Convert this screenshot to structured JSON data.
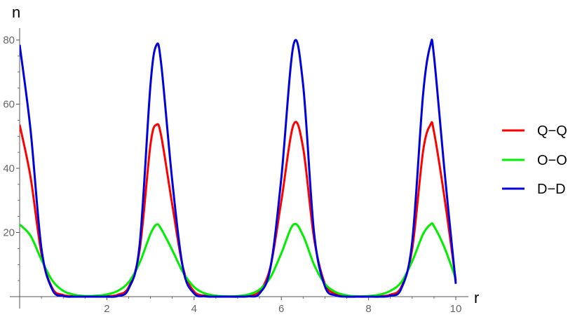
{
  "chart_data": {
    "type": "line",
    "xlabel": "r",
    "ylabel": "n",
    "xlim": [
      0,
      10
    ],
    "ylim": [
      0,
      80
    ],
    "xticks": [
      2,
      4,
      6,
      8,
      10
    ],
    "yticks": [
      20,
      40,
      60,
      80
    ],
    "grid": false,
    "legend_position": "right",
    "colors": {
      "axis": "#555555",
      "tick_label": "#666666",
      "axis_label": "#000000",
      "legend_text": "#000000"
    },
    "series": [
      {
        "name": "Q−Q",
        "color": "#ff0000",
        "x": [
          0,
          0.25,
          0.5,
          0.75,
          1.0,
          1.25,
          1.5,
          1.75,
          2.0,
          2.25,
          2.5,
          2.75,
          3.0,
          3.14,
          3.25,
          3.5,
          3.75,
          4.0,
          4.25,
          4.5,
          4.75,
          5.0,
          5.25,
          5.5,
          5.75,
          6.0,
          6.28,
          6.5,
          6.75,
          7.0,
          7.25,
          7.5,
          7.75,
          8.0,
          8.25,
          8.5,
          8.75,
          9.0,
          9.25,
          9.42,
          9.5,
          9.75,
          10.0
        ],
        "y": [
          53.6,
          37.3,
          13.4,
          2.6,
          0.5,
          0.1,
          0.0,
          0.0,
          0.1,
          0.6,
          3.0,
          14.4,
          47.4,
          53.6,
          49.8,
          28.6,
          8.8,
          1.6,
          0.3,
          0.1,
          0.0,
          0.0,
          0.3,
          1.7,
          9.3,
          29.8,
          53.6,
          46.4,
          18.2,
          4.0,
          0.8,
          0.2,
          0.0,
          0.0,
          0.1,
          0.6,
          3.0,
          14.8,
          45.3,
          53.6,
          51.4,
          30.0,
          5.0
        ]
      },
      {
        "name": "O−O",
        "color": "#00ee00",
        "x": [
          0,
          0.25,
          0.5,
          0.75,
          1.0,
          1.25,
          1.5,
          1.75,
          2.0,
          2.25,
          2.5,
          2.75,
          3.0,
          3.14,
          3.25,
          3.5,
          3.75,
          4.0,
          4.25,
          4.5,
          4.75,
          5.0,
          5.25,
          5.5,
          5.75,
          6.0,
          6.28,
          6.5,
          6.75,
          7.0,
          7.25,
          7.5,
          7.75,
          8.0,
          8.25,
          8.5,
          8.75,
          9.0,
          9.25,
          9.42,
          9.5,
          9.75,
          10.0
        ],
        "y": [
          22.5,
          19.0,
          11.5,
          5.0,
          1.8,
          0.6,
          0.2,
          0.3,
          0.7,
          1.8,
          4.5,
          10.5,
          19.5,
          22.5,
          21.0,
          14.5,
          7.5,
          3.0,
          1.0,
          0.3,
          0.1,
          0.2,
          0.7,
          2.2,
          6.0,
          13.5,
          22.5,
          19.0,
          10.0,
          4.0,
          1.4,
          0.4,
          0.1,
          0.2,
          0.6,
          1.8,
          4.5,
          11.0,
          19.5,
          22.5,
          22.0,
          15.0,
          5.5
        ]
      },
      {
        "name": "D−D",
        "color": "#0000dd",
        "x": [
          0,
          0.25,
          0.5,
          0.75,
          1.0,
          1.25,
          1.5,
          1.75,
          2.0,
          2.25,
          2.5,
          2.75,
          3.0,
          3.14,
          3.25,
          3.5,
          3.75,
          4.0,
          4.25,
          4.5,
          4.75,
          5.0,
          5.25,
          5.5,
          5.75,
          6.0,
          6.28,
          6.5,
          6.75,
          7.0,
          7.25,
          7.5,
          7.75,
          8.0,
          8.25,
          8.5,
          8.75,
          9.0,
          9.25,
          9.42,
          9.5,
          9.75,
          10.0
        ],
        "y": [
          78.5,
          52.0,
          15.0,
          2.2,
          0.2,
          0.0,
          0.0,
          0.0,
          0.0,
          0.2,
          2.5,
          16.0,
          66.0,
          78.5,
          72.0,
          36.0,
          8.5,
          1.0,
          0.1,
          0.0,
          0.0,
          0.0,
          0.1,
          1.0,
          9.0,
          37.0,
          78.5,
          66.0,
          20.0,
          3.2,
          0.4,
          0.0,
          0.0,
          0.0,
          0.0,
          0.3,
          2.5,
          17.0,
          63.0,
          78.5,
          75.0,
          38.0,
          4.0
        ]
      }
    ]
  }
}
